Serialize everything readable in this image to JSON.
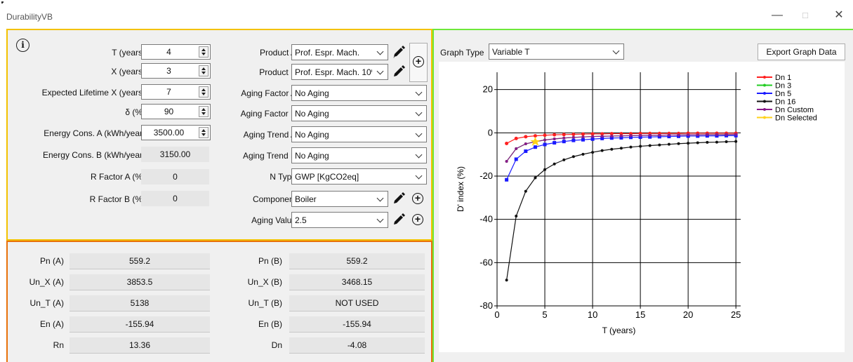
{
  "window": {
    "title": "DurabilityVB"
  },
  "inputs": {
    "t_years": {
      "label": "T (years)",
      "value": "4"
    },
    "x_years": {
      "label": "X (years)",
      "value": "3"
    },
    "expected_lifetime": {
      "label": "Expected Lifetime X (years)",
      "value": "7"
    },
    "delta": {
      "label": "δ (%)",
      "value": "90"
    },
    "energy_a": {
      "label": "Energy Cons. A (kWh/year)",
      "value": "3500.00"
    },
    "energy_b": {
      "label": "Energy Cons. B (kWh/year)",
      "value": "3150.00"
    },
    "r_factor_a": {
      "label": "R Factor A (%)",
      "value": "0"
    },
    "r_factor_b": {
      "label": "R Factor B (%)",
      "value": "0"
    }
  },
  "selectors": {
    "product_a": {
      "label": "Product A",
      "value": "Prof. Espr. Mach."
    },
    "product_b": {
      "label": "Product B",
      "value": "Prof. Espr. Mach. 10%"
    },
    "aging_factor_a": {
      "label": "Aging Factor A",
      "value": "No Aging"
    },
    "aging_factor_b": {
      "label": "Aging Factor B",
      "value": "No Aging"
    },
    "aging_trend_a": {
      "label": "Aging Trend A",
      "value": "No Aging"
    },
    "aging_trend_b": {
      "label": "Aging Trend B",
      "value": "No Aging"
    },
    "n_type": {
      "label": "N Type",
      "value": "GWP [KgCO2eq]"
    },
    "component": {
      "label": "Component",
      "value": "Boiler"
    },
    "aging_value": {
      "label": "Aging Value",
      "value": "2.5"
    }
  },
  "results": {
    "left": [
      {
        "label": "Pn (A)",
        "value": "559.2"
      },
      {
        "label": "Un_X (A)",
        "value": "3853.5"
      },
      {
        "label": "Un_T (A)",
        "value": "5138"
      },
      {
        "label": "En (A)",
        "value": "-155.94"
      },
      {
        "label": "Rn",
        "value": "13.36"
      }
    ],
    "right": [
      {
        "label": "Pn (B)",
        "value": "559.2"
      },
      {
        "label": "Un_X (B)",
        "value": "3468.15"
      },
      {
        "label": "Un_T (B)",
        "value": "NOT USED"
      },
      {
        "label": "En (B)",
        "value": "-155.94"
      },
      {
        "label": "Dn",
        "value": "-4.08"
      }
    ]
  },
  "graph": {
    "type_label": "Graph Type",
    "type_value": "Variable T",
    "export_label": "Export Graph Data"
  },
  "chart_data": {
    "type": "line",
    "xlabel": "T (years)",
    "ylabel": "D' index (%)",
    "xlim": [
      0,
      25.5
    ],
    "ylim": [
      -80,
      28
    ],
    "xticks": [
      0,
      5,
      10,
      15,
      20,
      25
    ],
    "yticks": [
      20,
      0,
      -20,
      -40,
      -60,
      -80
    ],
    "grid": true,
    "legend_position": "top-right",
    "series": [
      {
        "name": "Dn 1",
        "color": "#ff2020",
        "x": [
          1,
          2,
          3,
          4,
          5,
          6,
          7,
          8,
          9,
          10,
          11,
          12,
          13,
          14,
          15,
          16,
          17,
          18,
          19,
          20,
          21,
          22,
          23,
          24,
          25
        ],
        "values": [
          -4.9,
          -2.6,
          -1.8,
          -1.4,
          -1.1,
          -0.9,
          -0.8,
          -0.7,
          -0.6,
          -0.5,
          -0.5,
          -0.4,
          -0.4,
          -0.4,
          -0.3,
          -0.3,
          -0.3,
          -0.3,
          -0.3,
          -0.2,
          -0.2,
          -0.2,
          -0.2,
          -0.2,
          -0.2
        ]
      },
      {
        "name": "Dn 3",
        "color": "#22cc22",
        "x": [
          1,
          2,
          3,
          4,
          5,
          6,
          7,
          8,
          9,
          10,
          11,
          12,
          13,
          14,
          15,
          16,
          17,
          18,
          19,
          20,
          21,
          22,
          23,
          24,
          25
        ],
        "values": [
          -13.2,
          -7.3,
          -5.1,
          -4.1,
          -3.3,
          -2.8,
          -2.4,
          -2.1,
          -1.9,
          -1.7,
          -1.6,
          -1.5,
          -1.4,
          -1.3,
          -1.2,
          -1.1,
          -1.1,
          -1.0,
          -1.0,
          -0.9,
          -0.9,
          -0.8,
          -0.8,
          -0.8,
          -0.7
        ]
      },
      {
        "name": "Dn 5",
        "color": "#1a1aff",
        "x": [
          1,
          2,
          3,
          4,
          5,
          6,
          7,
          8,
          9,
          10,
          11,
          12,
          13,
          14,
          15,
          16,
          17,
          18,
          19,
          20,
          21,
          22,
          23,
          24,
          25
        ],
        "values": [
          -21.7,
          -12.2,
          -8.5,
          -6.6,
          -5.4,
          -4.6,
          -4.0,
          -3.5,
          -3.2,
          -2.9,
          -2.6,
          -2.4,
          -2.3,
          -2.1,
          -2.0,
          -1.9,
          -1.8,
          -1.7,
          -1.6,
          -1.5,
          -1.5,
          -1.4,
          -1.4,
          -1.3,
          -1.3
        ]
      },
      {
        "name": "Dn 16",
        "color": "#111111",
        "x": [
          1,
          2,
          3,
          4,
          5,
          6,
          7,
          8,
          9,
          10,
          11,
          12,
          13,
          14,
          15,
          16,
          17,
          18,
          19,
          20,
          21,
          22,
          23,
          24,
          25
        ],
        "values": [
          -68.1,
          -38.5,
          -27.0,
          -20.8,
          -17.0,
          -14.4,
          -12.5,
          -11.0,
          -9.9,
          -9.0,
          -8.2,
          -7.6,
          -7.1,
          -6.6,
          -6.2,
          -5.9,
          -5.6,
          -5.3,
          -5.0,
          -4.8,
          -4.6,
          -4.4,
          -4.3,
          -4.1,
          -4.0
        ]
      },
      {
        "name": "Dn Custom",
        "color": "#8a1a8a",
        "x": [
          1,
          2,
          3,
          4,
          5,
          6,
          7,
          8,
          9,
          10,
          11,
          12,
          13,
          14,
          15,
          16,
          17,
          18,
          19,
          20,
          21,
          22,
          23,
          24,
          25
        ],
        "values": [
          -13.2,
          -7.3,
          -5.1,
          -4.1,
          -3.3,
          -2.8,
          -2.4,
          -2.1,
          -1.9,
          -1.7,
          -1.6,
          -1.5,
          -1.4,
          -1.3,
          -1.2,
          -1.1,
          -1.1,
          -1.0,
          -1.0,
          -0.9,
          -0.9,
          -0.8,
          -0.8,
          -0.8,
          -0.7
        ]
      },
      {
        "name": "Dn Selected",
        "color": "#ffd21a",
        "x": [
          4
        ],
        "values": [
          -4.08
        ]
      }
    ]
  }
}
